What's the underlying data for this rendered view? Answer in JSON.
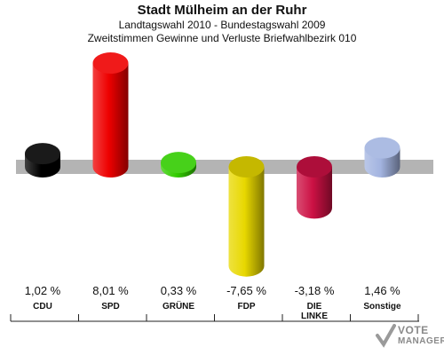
{
  "header": {
    "title": "Stadt Mülheim an der Ruhr",
    "subtitle": "Landtagswahl 2010 - Bundestagswahl 2009",
    "subtitle2": "Zweitstimmen Gewinne und Verluste Briefwahlbezirk 010"
  },
  "logo": {
    "line1": "VOTE",
    "line2": "MANAGER"
  },
  "chart_data": {
    "type": "bar",
    "title": "Stadt Mülheim an der Ruhr",
    "categories": [
      "CDU",
      "SPD",
      "GRÜNE",
      "FDP",
      "DIE LINKE",
      "Sonstige"
    ],
    "values": [
      1.02,
      8.01,
      0.33,
      -7.65,
      -3.18,
      1.46
    ],
    "value_labels": [
      "1,02 %",
      "8,01 %",
      "0,33 %",
      "-7,65 %",
      "-3,18 %",
      "1,46 %"
    ],
    "colors": [
      "#000000",
      "#ee0000",
      "#33cc00",
      "#e8d800",
      "#cc1144",
      "#a3b4e0"
    ],
    "ylim": [
      -8.5,
      8.5
    ]
  }
}
